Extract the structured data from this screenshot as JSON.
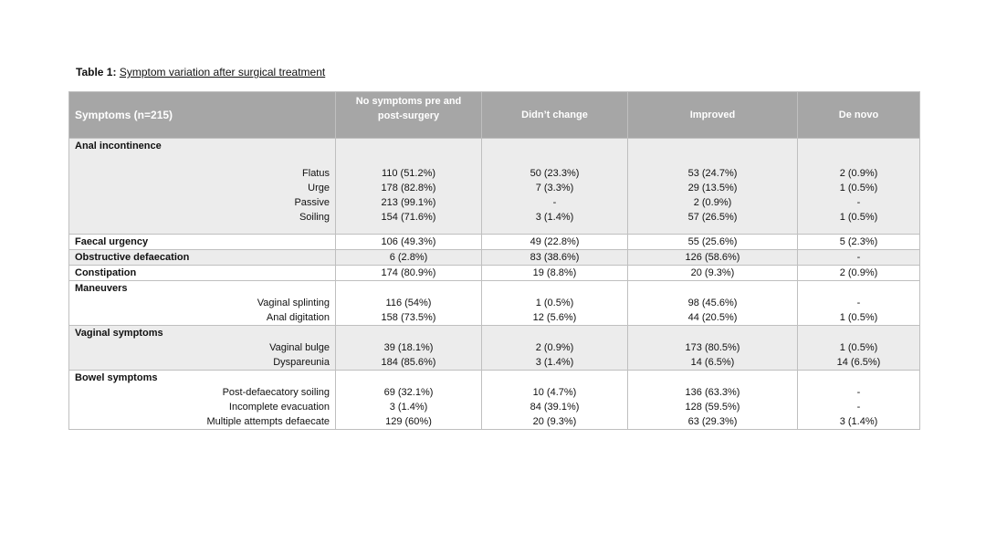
{
  "caption": {
    "lead": "Table 1:",
    "rest": "Symptom  variation after surgical treatment"
  },
  "table": {
    "headers": [
      "Symptoms (n=215)",
      "No symptoms pre and",
      "post-surgery",
      "Didn’t change",
      "Improved",
      "De novo"
    ],
    "rows": {
      "anal_incontinence": "Anal incontinence",
      "flatus": [
        "Flatus",
        "110 (51.2%)",
        "50 (23.3%)",
        "53 (24.7%)",
        "2 (0.9%)"
      ],
      "urge": [
        "Urge",
        "178 (82.8%)",
        "7 (3.3%)",
        "29 (13.5%)",
        "1 (0.5%)"
      ],
      "passive": [
        "Passive",
        "213 (99.1%)",
        "-",
        "2 (0.9%)",
        "-"
      ],
      "soiling": [
        "Soiling",
        "154 (71.6%)",
        "3 (1.4%)",
        "57 (26.5%)",
        "1 (0.5%)"
      ],
      "faecal_urgency": [
        "Faecal urgency",
        "106 (49.3%)",
        "49 (22.8%)",
        "55 (25.6%)",
        "5 (2.3%)"
      ],
      "obstructive": [
        "Obstructive defaecation",
        "6 (2.8%)",
        "83 (38.6%)",
        "126 (58.6%)",
        "-"
      ],
      "constipation": [
        "Constipation",
        "174 (80.9%)",
        "19 (8.8%)",
        "20 (9.3%)",
        "2 (0.9%)"
      ],
      "maneuvers": "Maneuvers",
      "vaginal_splinting": [
        "Vaginal splinting",
        "116 (54%)",
        "1 (0.5%)",
        "98 (45.6%)",
        "-"
      ],
      "anal_digitation": [
        "Anal digitation",
        "158 (73.5%)",
        "12 (5.6%)",
        "44 (20.5%)",
        "1 (0.5%)"
      ],
      "vaginal_symptoms": "Vaginal symptoms",
      "vaginal_bulge": [
        "Vaginal bulge",
        "39 (18.1%)",
        "2 (0.9%)",
        "173 (80.5%)",
        "1 (0.5%)"
      ],
      "dyspareunia": [
        "Dyspareunia",
        "184 (85.6%)",
        "3 (1.4%)",
        "14 (6.5%)",
        "14 (6.5%)"
      ],
      "bowel_symptoms": "Bowel symptoms",
      "post_defaecatory": [
        "Post-defaecatory soiling",
        "69 (32.1%)",
        "10 (4.7%)",
        "136 (63.3%)",
        "-"
      ],
      "incomplete": [
        "Incomplete evacuation",
        "3 (1.4%)",
        "84 (39.1%)",
        "128 (59.5%)",
        "-"
      ],
      "multiple": [
        "Multiple attempts defaecate",
        "129 (60%)",
        "20 (9.3%)",
        "63 (29.3%)",
        "3 (1.4%)"
      ]
    }
  },
  "colors": {
    "header_bg": "#a6a6a6",
    "band_gray": "#ececec",
    "border": "#bfbfbf"
  }
}
